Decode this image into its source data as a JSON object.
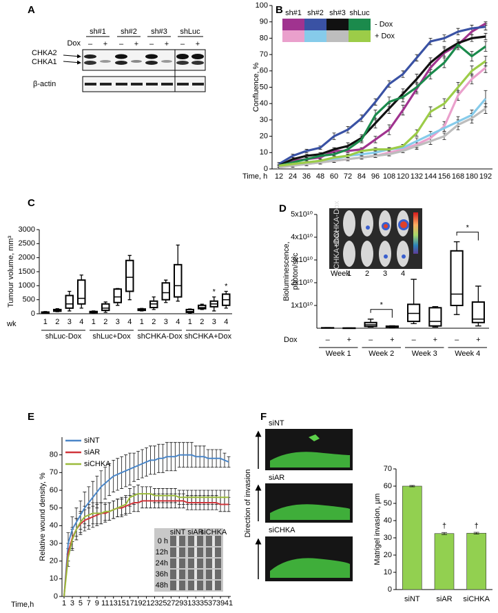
{
  "panel_labels": [
    "A",
    "B",
    "C",
    "D",
    "E",
    "F"
  ],
  "blot": {
    "groups": [
      "sh#1",
      "sh#2",
      "sh#3",
      "shLuc"
    ],
    "dox_label": "Dox",
    "signs": [
      "–",
      "+"
    ],
    "bands": [
      "CHKA2",
      "CHKA1"
    ],
    "loading": "β-actin"
  },
  "mouse_images": {
    "rows": [
      "shCHKA-Dox",
      "shCHKA+Dox"
    ],
    "week_label": "Week",
    "weeks": [
      "1",
      "2",
      "3",
      "4"
    ]
  },
  "wound_images": {
    "columns": [
      "siNT",
      "siAR",
      "siCHKA"
    ],
    "rows": [
      "0 h",
      "12h",
      "24h",
      "36h",
      "48h"
    ]
  },
  "invasion_images": {
    "labels": [
      "siNT",
      "siAR",
      "siCHKA"
    ],
    "axis_label": "Direction of invasion"
  },
  "chart_data": [
    {
      "type": "line",
      "ylabel": "Confluence, %",
      "xlabel": "Time, h",
      "categories": [
        "12",
        "24",
        "36",
        "48",
        "60",
        "72",
        "84",
        "96",
        "108",
        "120",
        "132",
        "144",
        "156",
        "168",
        "180",
        "192"
      ],
      "ylim": [
        0,
        100
      ],
      "yticks": [
        0,
        10,
        20,
        30,
        40,
        50,
        60,
        70,
        80,
        90,
        100
      ],
      "legend": {
        "columns": [
          "sh#1",
          "sh#2",
          "sh#3",
          "shLuc"
        ],
        "rows": [
          "- Dox",
          "+ Dox"
        ]
      },
      "series": [
        {
          "color": "#a0338f",
          "values": [
            2,
            5,
            6,
            7,
            11,
            11,
            12,
            18,
            24,
            36,
            49,
            62,
            71,
            76,
            84,
            89
          ],
          "errors": [
            1,
            1,
            1,
            1,
            1,
            1,
            1,
            2,
            3,
            3,
            3,
            3,
            3,
            2,
            2,
            1
          ]
        },
        {
          "color": "#3a52a4",
          "values": [
            3,
            8,
            11,
            13,
            20,
            24,
            31,
            41,
            52,
            58,
            68,
            78,
            80,
            84,
            86,
            87
          ],
          "errors": [
            1,
            1,
            1,
            1,
            2,
            2,
            2,
            2,
            2,
            2,
            2,
            2,
            2,
            2,
            2,
            2
          ]
        },
        {
          "color": "#111111",
          "values": [
            2,
            6,
            8,
            9,
            12,
            14,
            19,
            28,
            37,
            46,
            55,
            65,
            72,
            77,
            80,
            81
          ],
          "errors": [
            1,
            1,
            1,
            1,
            1,
            2,
            2,
            3,
            3,
            3,
            3,
            3,
            3,
            2,
            2,
            2
          ]
        },
        {
          "color": "#1b8a4c",
          "values": [
            2,
            4,
            6,
            8,
            9,
            12,
            18,
            33,
            41,
            44,
            50,
            58,
            65,
            76,
            69,
            75
          ],
          "errors": [
            1,
            1,
            1,
            1,
            1,
            1,
            2,
            3,
            3,
            3,
            3,
            3,
            3,
            3,
            3,
            3
          ]
        },
        {
          "color": "#eaa0cc",
          "values": [
            1,
            2,
            3,
            4,
            5,
            6,
            7,
            8,
            10,
            12,
            15,
            19,
            26,
            45,
            55,
            62
          ],
          "errors": [
            1,
            1,
            1,
            1,
            1,
            1,
            1,
            1,
            1,
            1,
            2,
            2,
            3,
            3,
            3,
            3
          ]
        },
        {
          "color": "#86cbea",
          "values": [
            2,
            3,
            4,
            5,
            6,
            8,
            9,
            10,
            12,
            13,
            17,
            21,
            25,
            29,
            33,
            43
          ],
          "errors": [
            1,
            1,
            1,
            1,
            1,
            1,
            1,
            1,
            1,
            1,
            2,
            2,
            2,
            3,
            3,
            5
          ]
        },
        {
          "color": "#bdbdbd",
          "values": [
            1,
            2,
            3,
            4,
            5,
            6,
            7,
            8,
            9,
            11,
            14,
            17,
            20,
            27,
            31,
            37
          ],
          "errors": [
            1,
            1,
            1,
            1,
            1,
            1,
            1,
            1,
            1,
            1,
            2,
            2,
            2,
            3,
            3,
            3
          ]
        },
        {
          "color": "#9ccc48",
          "values": [
            2,
            3,
            4,
            5,
            7,
            8,
            11,
            12,
            12,
            14,
            22,
            35,
            40,
            50,
            60,
            66
          ],
          "errors": [
            1,
            1,
            1,
            1,
            1,
            1,
            1,
            1,
            1,
            1,
            2,
            3,
            3,
            3,
            3,
            3
          ]
        }
      ]
    },
    {
      "type": "box",
      "ylabel": "Tumour volume, mm³",
      "xlabel": "wk",
      "ylim": [
        0,
        3000
      ],
      "yticks": [
        0,
        500,
        1000,
        1500,
        2000,
        2500,
        3000
      ],
      "subcategories": [
        "1",
        "2",
        "3",
        "4"
      ],
      "groups": [
        {
          "name": "shLuc-Dox",
          "boxes": [
            [
              20,
              30,
              45,
              60,
              80
            ],
            [
              70,
              90,
              120,
              150,
              180
            ],
            [
              100,
              200,
              350,
              650,
              800
            ],
            [
              200,
              350,
              550,
              1200,
              1380
            ]
          ]
        },
        {
          "name": "shLuc+Dox",
          "boxes": [
            [
              30,
              40,
              60,
              80,
              100
            ],
            [
              50,
              120,
              200,
              350,
              420
            ],
            [
              300,
              400,
              600,
              880,
              900
            ],
            [
              500,
              800,
              1300,
              1900,
              2080
            ]
          ]
        },
        {
          "name": "shCHKA-Dox",
          "boxes": [
            [
              100,
              120,
              150,
              170,
              190
            ],
            [
              150,
              220,
              350,
              450,
              600
            ],
            [
              400,
              500,
              750,
              1100,
              1200
            ],
            [
              450,
              600,
              1000,
              1750,
              2450
            ]
          ]
        },
        {
          "name": "shCHKA+Dox",
          "boxes": [
            [
              20,
              50,
              80,
              150,
              170
            ],
            [
              150,
              180,
              220,
              300,
              340
            ],
            [
              100,
              250,
              350,
              450,
              600
            ],
            [
              200,
              300,
              500,
              700,
              800
            ]
          ]
        }
      ],
      "annotations": [
        {
          "text": "*",
          "group": 3,
          "index": 2
        },
        {
          "text": "*",
          "group": 3,
          "index": 3
        }
      ]
    },
    {
      "type": "box",
      "ylabel": [
        "Bioluminescence,",
        "photon/sec"
      ],
      "xlabel": "Dox",
      "ylim": [
        0,
        50000000000
      ],
      "yticks": [
        {
          "value": 10000000000,
          "label": "1x10¹⁰"
        },
        {
          "value": 20000000000,
          "label": "2x10¹⁰"
        },
        {
          "value": 30000000000,
          "label": "3x10¹⁰"
        },
        {
          "value": 40000000000,
          "label": "4x10¹⁰"
        },
        {
          "value": 50000000000,
          "label": "5x10¹⁰"
        }
      ],
      "subcategories": [
        "–",
        "+"
      ],
      "groups": [
        {
          "name": "Week 1",
          "boxes": [
            [
              50000000,
              100000000,
              150000000,
              200000000,
              300000000
            ],
            [
              30000000,
              50000000,
              80000000,
              100000000,
              150000000
            ]
          ]
        },
        {
          "name": "Week 2",
          "boxes": [
            [
              500000000,
              800000000,
              1500000000,
              2500000000,
              4000000000
            ],
            [
              300000000,
              500000000,
              700000000,
              900000000,
              1100000000
            ]
          ]
        },
        {
          "name": "Week 3",
          "boxes": [
            [
              2000000000,
              3000000000,
              6500000000,
              10500000000,
              21500000000
            ],
            [
              500000000,
              1000000000,
              3000000000,
              9000000000,
              9500000000
            ]
          ]
        },
        {
          "name": "Week 4",
          "boxes": [
            [
              6000000000,
              10000000000,
              15000000000,
              34000000000,
              38000000000
            ],
            [
              1000000000,
              2500000000,
              4000000000,
              11500000000,
              18500000000
            ]
          ]
        }
      ],
      "annotations": [
        {
          "text": "*",
          "group": 1
        },
        {
          "text": "*",
          "group": 3
        }
      ]
    },
    {
      "type": "line",
      "ylabel": "Relative wound density, %",
      "xlabel": "Time,h",
      "x": [
        1,
        2,
        3,
        4,
        5,
        6,
        7,
        8,
        9,
        10,
        11,
        12,
        13,
        14,
        15,
        16,
        17,
        18,
        19,
        20,
        21,
        22,
        23,
        24,
        25,
        26,
        27,
        28,
        29,
        30,
        31,
        32,
        33,
        34,
        35,
        36,
        37,
        38,
        39,
        40,
        41
      ],
      "xlim": [
        1,
        41
      ],
      "xticks": [
        1,
        3,
        5,
        7,
        9,
        11,
        13,
        15,
        17,
        19,
        21,
        23,
        25,
        27,
        29,
        31,
        33,
        35,
        37,
        39,
        41
      ],
      "ylim": [
        0,
        90
      ],
      "yticks": [
        0,
        10,
        20,
        30,
        40,
        50,
        60,
        70,
        80
      ],
      "legend": "upper-left",
      "series": [
        {
          "name": "siNT",
          "color": "#4a86c8",
          "values": [
            0,
            30,
            38,
            42,
            46,
            50,
            53,
            56,
            59,
            62,
            64,
            66,
            68,
            69,
            70,
            71,
            72,
            73,
            74,
            75,
            76,
            77,
            77,
            78,
            78,
            79,
            79,
            79,
            80,
            80,
            80,
            80,
            79,
            79,
            79,
            78,
            78,
            78,
            78,
            77,
            76
          ],
          "errors": [
            0,
            6,
            7,
            8,
            8,
            9,
            9,
            9,
            9,
            9,
            9,
            9,
            9,
            9,
            9,
            9,
            9,
            8,
            8,
            8,
            8,
            8,
            8,
            8,
            8,
            8,
            8,
            8,
            7,
            7,
            7,
            7,
            6,
            6,
            6,
            5,
            5,
            5,
            5,
            4,
            3
          ]
        },
        {
          "name": "siAR",
          "color": "#d0343a",
          "values": [
            0,
            25,
            33,
            38,
            41,
            43,
            44,
            45,
            46,
            47,
            47,
            48,
            49,
            50,
            50,
            51,
            52,
            53,
            53,
            54,
            54,
            54,
            54,
            54,
            54,
            54,
            54,
            54,
            54,
            54,
            53,
            53,
            53,
            53,
            53,
            53,
            53,
            53,
            52,
            52,
            52
          ],
          "errors": [
            0,
            5,
            6,
            6,
            6,
            6,
            6,
            6,
            6,
            6,
            5,
            5,
            5,
            5,
            5,
            5,
            5,
            5,
            5,
            4,
            4,
            4,
            4,
            4,
            4,
            4,
            4,
            4,
            4,
            4,
            4,
            4,
            4,
            4,
            4,
            4,
            4,
            4,
            4,
            4,
            4
          ]
        },
        {
          "name": "siCHKA",
          "color": "#9bbb3b",
          "values": [
            0,
            22,
            32,
            38,
            42,
            45,
            46,
            47,
            47,
            47,
            48,
            48,
            49,
            50,
            51,
            52,
            56,
            57,
            58,
            58,
            58,
            58,
            57,
            57,
            57,
            57,
            57,
            57,
            56,
            56,
            56,
            56,
            56,
            56,
            56,
            56,
            56,
            56,
            56,
            56,
            56
          ],
          "errors": [
            0,
            5,
            6,
            6,
            6,
            6,
            6,
            6,
            6,
            6,
            5,
            5,
            5,
            5,
            5,
            5,
            5,
            5,
            5,
            4,
            4,
            4,
            4,
            4,
            4,
            4,
            4,
            4,
            4,
            4,
            4,
            4,
            4,
            4,
            4,
            4,
            4,
            4,
            4,
            4,
            4
          ]
        }
      ]
    },
    {
      "type": "bar",
      "ylabel": "Matrigel invasion, µm",
      "categories": [
        "siNT",
        "siAR",
        "siCHKA"
      ],
      "values": [
        60,
        32.5,
        32.7
      ],
      "errors": [
        0.4,
        0.6,
        0.5
      ],
      "color": "#92d050",
      "ylim": [
        0,
        70
      ],
      "yticks": [
        0,
        10,
        20,
        30,
        40,
        50,
        60,
        70
      ],
      "annotations": [
        {
          "text": "†",
          "index": 1
        },
        {
          "text": "†",
          "index": 2
        }
      ]
    }
  ]
}
